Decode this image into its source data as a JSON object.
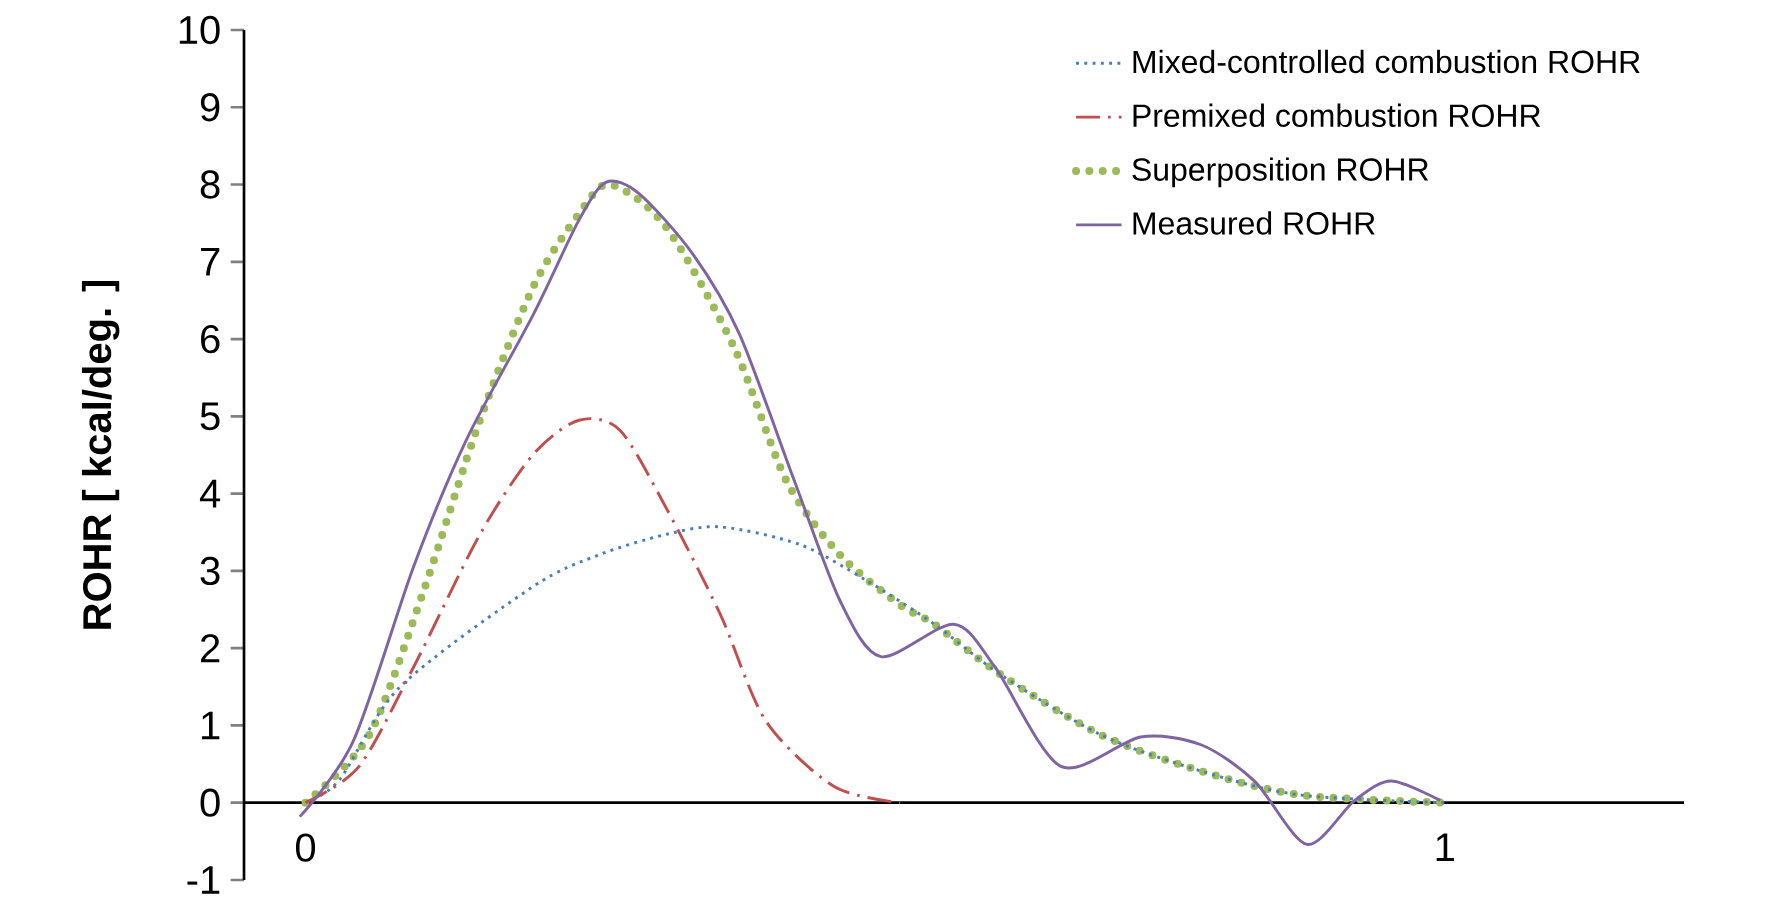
{
  "chart_data": {
    "type": "line",
    "ylabel": "ROHR [ kcal/deg. ]",
    "xlim": [
      -0.054,
      1.21
    ],
    "xticks": [
      0,
      1
    ],
    "ylim": [
      -1,
      10
    ],
    "yticks": [
      -1,
      0,
      1,
      2,
      3,
      4,
      5,
      6,
      7,
      8,
      9,
      10
    ],
    "grid": false,
    "legend": "top right",
    "marker": "none",
    "series": [
      {
        "name": "Mixed-controlled combustion ROHR",
        "color": "#4a7ebb",
        "line_style": "dotted",
        "x": [
          0,
          0.03,
          0.083,
          0.2,
          0.258,
          0.316,
          0.364,
          0.434,
          0.492,
          0.552,
          0.61,
          0.698,
          0.786,
          0.873,
          1.0
        ],
        "values": [
          0,
          0.3,
          1.5,
          2.8,
          3.21,
          3.47,
          3.57,
          3.34,
          2.88,
          2.31,
          1.66,
          0.88,
          0.41,
          0.1,
          0
        ]
      },
      {
        "name": "Premixed combustion ROHR",
        "color": "#c0504d",
        "line_style": "dashdot",
        "x": [
          0,
          0.047,
          0.095,
          0.153,
          0.2,
          0.24,
          0.276,
          0.316,
          0.364,
          0.404,
          0.464,
          0.522
        ],
        "values": [
          0,
          0.47,
          1.76,
          3.47,
          4.51,
          4.95,
          4.82,
          3.83,
          2.44,
          1.06,
          0.21,
          0
        ]
      },
      {
        "name": "Superposition ROHR",
        "color": "#9bbb59",
        "line_style": "dotted",
        "x": [
          0,
          0.056,
          0.105,
          0.153,
          0.2,
          0.24,
          0.267,
          0.316,
          0.376,
          0.422,
          0.469,
          0.522,
          0.552,
          0.61,
          0.698,
          0.786,
          0.873,
          1.0
        ],
        "values": [
          0,
          0.88,
          2.8,
          4.95,
          6.68,
          7.62,
          8.0,
          7.46,
          5.9,
          4.17,
          3.21,
          2.56,
          2.31,
          1.66,
          0.88,
          0.41,
          0.1,
          0
        ]
      },
      {
        "name": "Measured ROHR",
        "color": "#7f64a2",
        "line_style": "solid",
        "x": [
          -0.005,
          0.042,
          0.095,
          0.141,
          0.2,
          0.24,
          0.264,
          0.293,
          0.34,
          0.381,
          0.429,
          0.469,
          0.505,
          0.569,
          0.605,
          0.663,
          0.733,
          0.786,
          0.833,
          0.879,
          0.921,
          0.953,
          0.996
        ],
        "values": [
          -0.18,
          0.8,
          3.06,
          4.69,
          6.32,
          7.54,
          8.03,
          7.88,
          7.1,
          6.06,
          4.17,
          2.62,
          1.89,
          2.31,
          1.76,
          0.47,
          0.85,
          0.75,
          0.28,
          -0.54,
          0.03,
          0.28,
          0.03
        ]
      }
    ]
  }
}
